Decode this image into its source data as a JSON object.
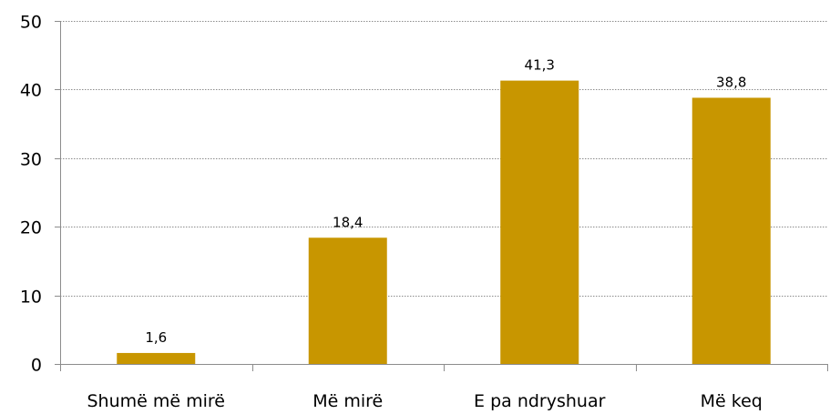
{
  "chart_data": {
    "type": "bar",
    "categories": [
      "Shumë më mirë",
      "Më mirë",
      "E pa ndryshuar",
      "Më keq"
    ],
    "values": [
      1.6,
      18.4,
      41.3,
      38.8
    ],
    "value_labels": [
      "1,6",
      "18,4",
      "41,3",
      "38,8"
    ],
    "ylim": [
      0,
      50
    ],
    "yticks": [
      0,
      10,
      20,
      30,
      40,
      50
    ],
    "grid": true,
    "bar_color": "#c89600",
    "title": "",
    "xlabel": "",
    "ylabel": ""
  }
}
